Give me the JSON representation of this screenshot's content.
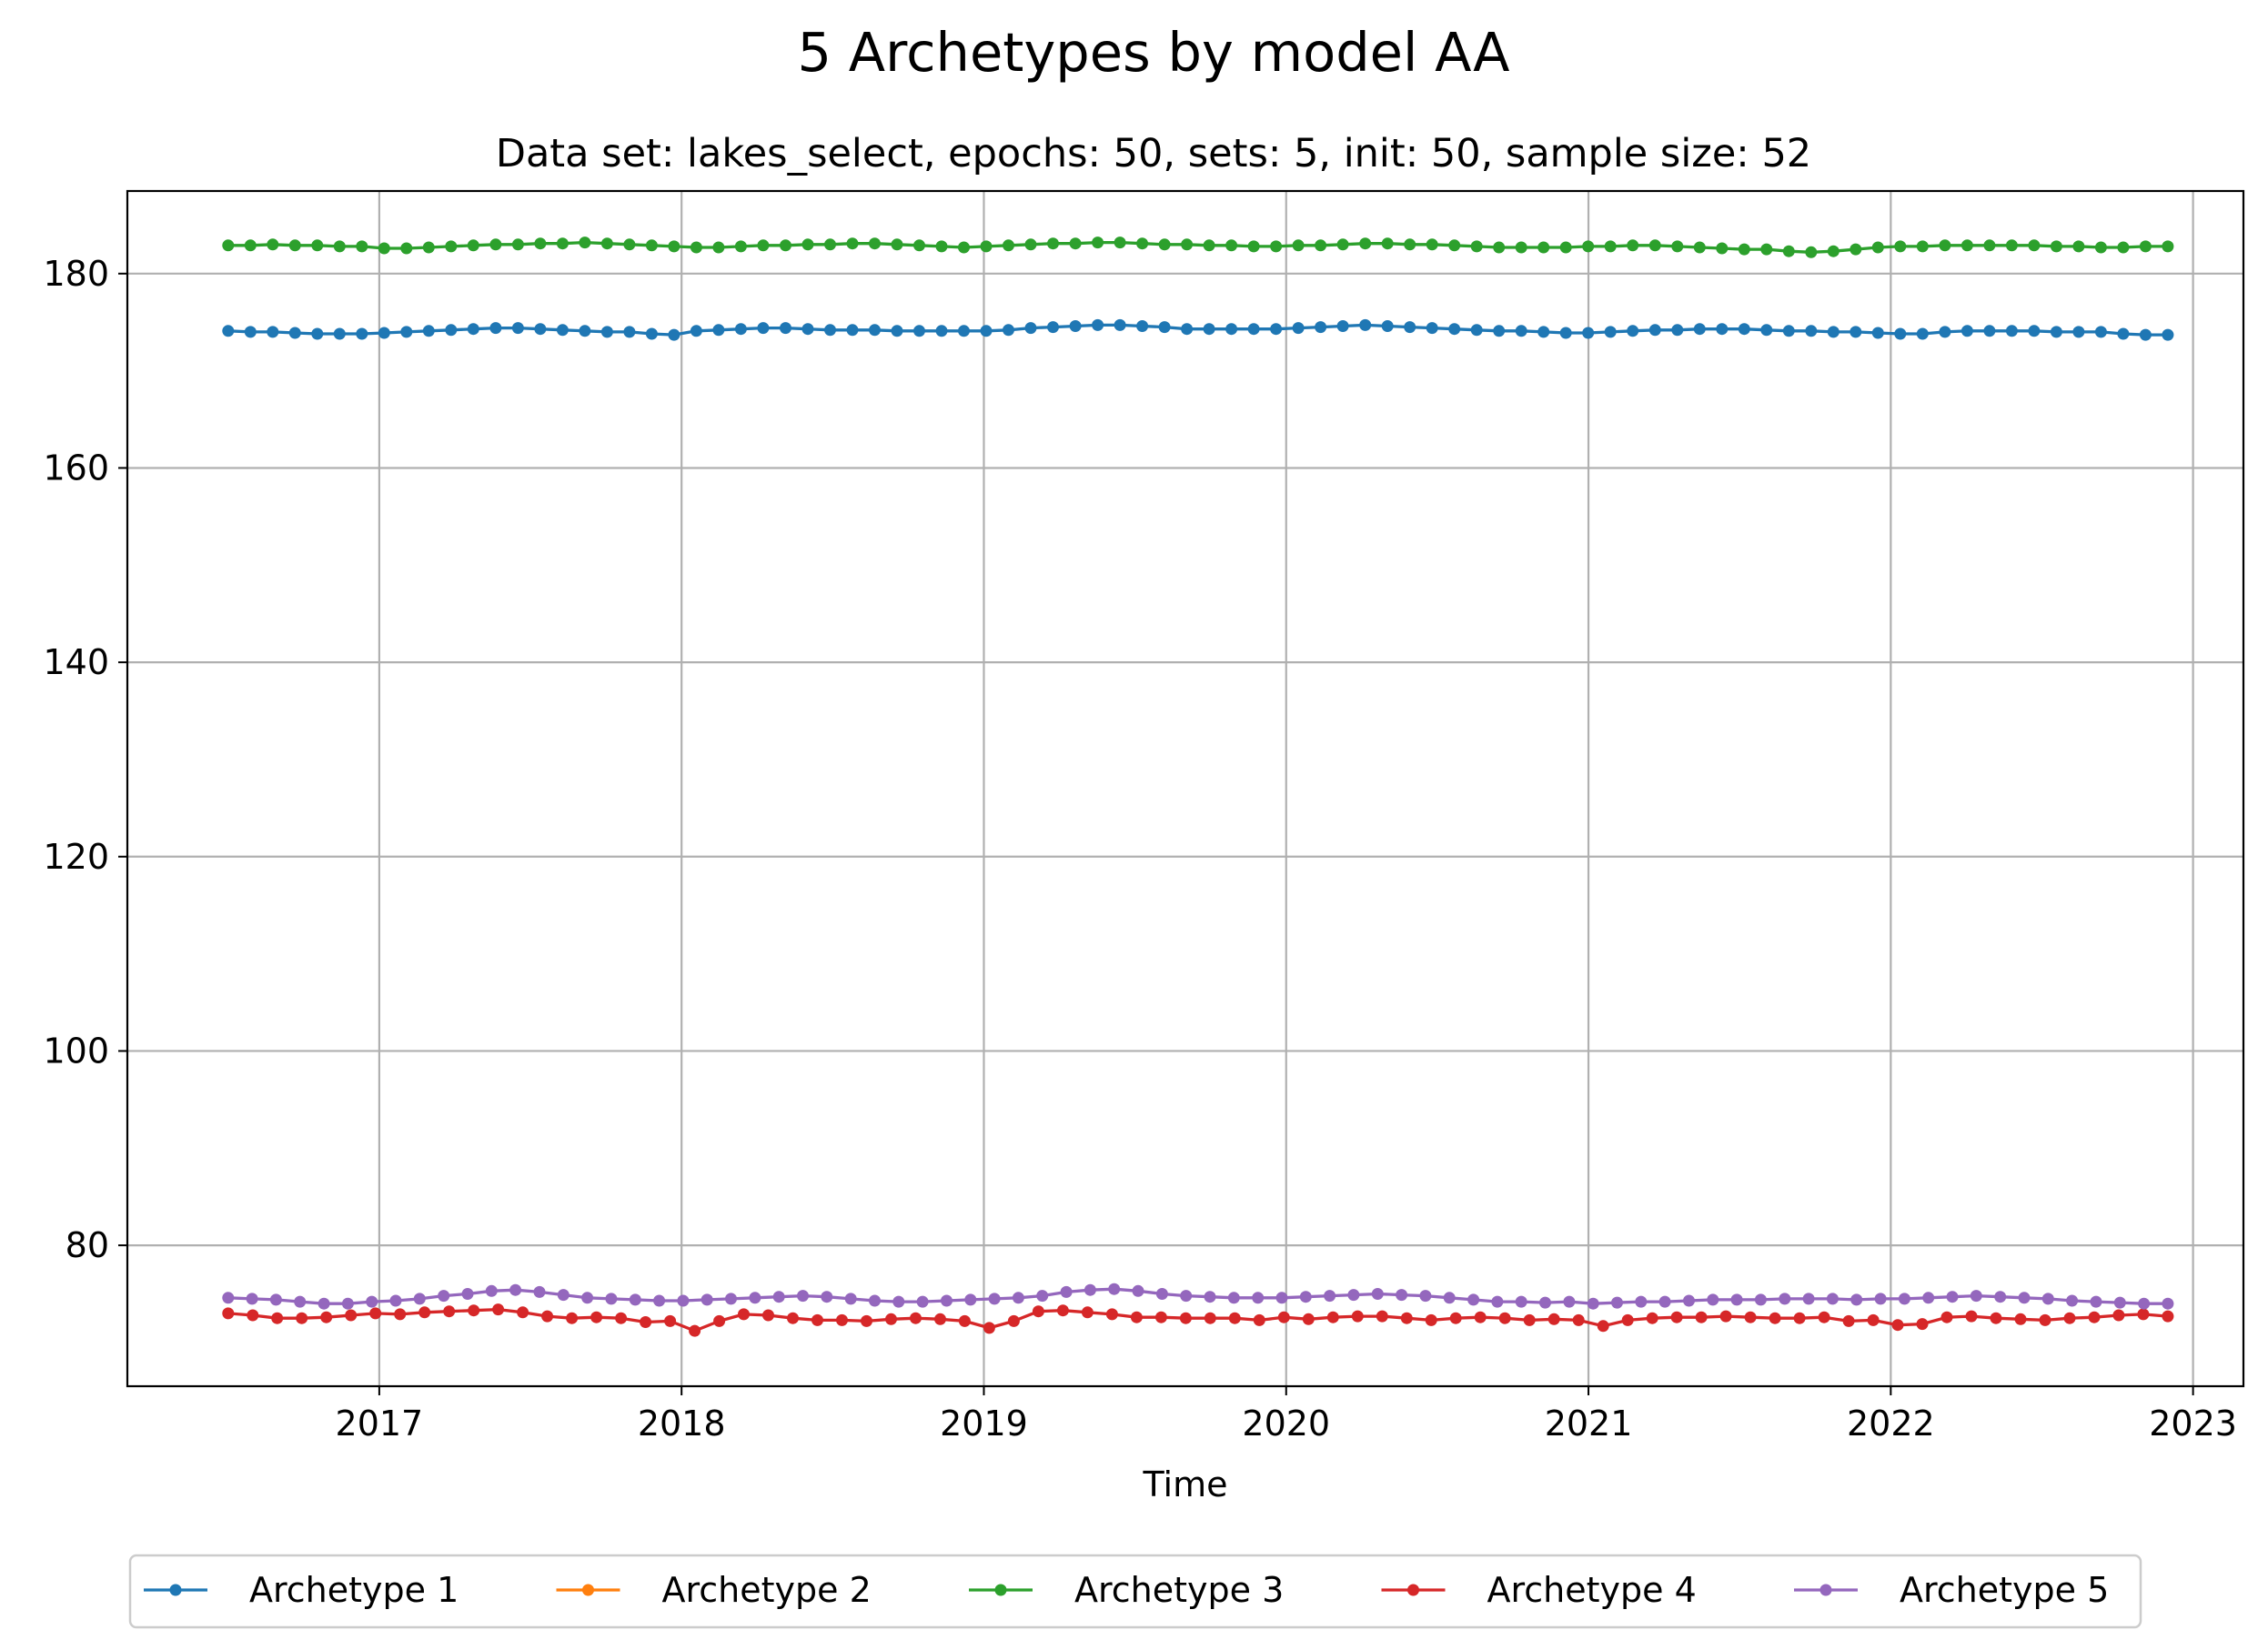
{
  "chart_data": {
    "type": "line",
    "title": "5 Archetypes by model AA",
    "subtitle": "Data set: lakes_select, epochs: 50, sets: 5, init: 50, sample size: 52",
    "xlabel": "Time",
    "ylabel": "",
    "x_start": "2016-07",
    "x_end": "2022-12",
    "x_frequency": "monthly",
    "xlim": [
      "2016-03",
      "2023-03"
    ],
    "ylim": [
      65.5,
      188.5
    ],
    "x_ticks": [
      "2017",
      "2018",
      "2019",
      "2020",
      "2021",
      "2022",
      "2023"
    ],
    "y_ticks": [
      80,
      100,
      120,
      140,
      160,
      180
    ],
    "grid": true,
    "legend_position": "bottom-center",
    "series": [
      {
        "name": "Archetype 1",
        "color": "#1f77b4",
        "values": [
          174.1,
          174.0,
          174.0,
          173.9,
          173.8,
          173.8,
          173.8,
          173.9,
          174.0,
          174.1,
          174.2,
          174.3,
          174.4,
          174.4,
          174.3,
          174.2,
          174.1,
          174.0,
          174.0,
          173.8,
          173.7,
          174.1,
          174.2,
          174.3,
          174.4,
          174.4,
          174.3,
          174.2,
          174.2,
          174.2,
          174.1,
          174.1,
          174.1,
          174.1,
          174.1,
          174.2,
          174.4,
          174.5,
          174.6,
          174.7,
          174.7,
          174.6,
          174.5,
          174.3,
          174.3,
          174.3,
          174.3,
          174.3,
          174.4,
          174.5,
          174.6,
          174.7,
          174.6,
          174.5,
          174.4,
          174.3,
          174.2,
          174.1,
          174.1,
          174.0,
          173.9,
          173.9,
          174.0,
          174.1,
          174.2,
          174.2,
          174.3,
          174.3,
          174.3,
          174.2,
          174.1,
          174.1,
          174.0,
          174.0,
          173.9,
          173.8,
          173.8,
          174.0,
          174.1,
          174.1,
          174.1,
          174.1,
          174.0,
          174.0,
          174.0,
          173.8,
          173.7,
          173.7
        ]
      },
      {
        "name": "Archetype 2",
        "color": "#ff7f0e",
        "values": []
      },
      {
        "name": "Archetype 3",
        "color": "#2ca02c",
        "values": [
          182.9,
          182.9,
          183.0,
          182.9,
          182.9,
          182.8,
          182.8,
          182.6,
          182.6,
          182.7,
          182.8,
          182.9,
          183.0,
          183.0,
          183.1,
          183.1,
          183.2,
          183.1,
          183.0,
          182.9,
          182.8,
          182.7,
          182.7,
          182.8,
          182.9,
          182.9,
          183.0,
          183.0,
          183.1,
          183.1,
          183.0,
          182.9,
          182.8,
          182.7,
          182.8,
          182.9,
          183.0,
          183.1,
          183.1,
          183.2,
          183.2,
          183.1,
          183.0,
          183.0,
          182.9,
          182.9,
          182.8,
          182.8,
          182.9,
          182.9,
          183.0,
          183.1,
          183.1,
          183.0,
          183.0,
          182.9,
          182.8,
          182.7,
          182.7,
          182.7,
          182.7,
          182.8,
          182.8,
          182.9,
          182.9,
          182.8,
          182.7,
          182.6,
          182.5,
          182.5,
          182.3,
          182.2,
          182.3,
          182.5,
          182.7,
          182.8,
          182.8,
          182.9,
          182.9,
          182.9,
          182.9,
          182.9,
          182.8,
          182.8,
          182.7,
          182.7,
          182.8,
          182.8
        ]
      },
      {
        "name": "Archetype 4",
        "color": "#d62728",
        "values": [
          73.0,
          72.8,
          72.5,
          72.5,
          72.6,
          72.8,
          73.0,
          72.9,
          73.1,
          73.2,
          73.3,
          73.4,
          73.1,
          72.7,
          72.5,
          72.6,
          72.5,
          72.1,
          72.2,
          71.2,
          72.2,
          72.9,
          72.8,
          72.5,
          72.3,
          72.3,
          72.2,
          72.4,
          72.5,
          72.4,
          72.2,
          71.5,
          72.2,
          73.2,
          73.3,
          73.1,
          72.9,
          72.6,
          72.6,
          72.5,
          72.5,
          72.5,
          72.3,
          72.6,
          72.4,
          72.6,
          72.7,
          72.7,
          72.5,
          72.3,
          72.5,
          72.6,
          72.5,
          72.3,
          72.4,
          72.3,
          71.7,
          72.3,
          72.5,
          72.6,
          72.6,
          72.7,
          72.6,
          72.5,
          72.5,
          72.6,
          72.2,
          72.3,
          71.8,
          71.9,
          72.6,
          72.7,
          72.5,
          72.4,
          72.3,
          72.5,
          72.6,
          72.8,
          72.9,
          72.7
        ]
      },
      {
        "name": "Archetype 5",
        "color": "#9467bd",
        "values": [
          74.6,
          74.5,
          74.4,
          74.2,
          74.0,
          74.0,
          74.2,
          74.3,
          74.5,
          74.8,
          75.0,
          75.3,
          75.4,
          75.2,
          74.9,
          74.6,
          74.5,
          74.4,
          74.3,
          74.3,
          74.4,
          74.5,
          74.6,
          74.7,
          74.8,
          74.7,
          74.5,
          74.3,
          74.2,
          74.2,
          74.3,
          74.4,
          74.5,
          74.6,
          74.8,
          75.2,
          75.4,
          75.5,
          75.3,
          75.0,
          74.8,
          74.7,
          74.6,
          74.6,
          74.6,
          74.7,
          74.8,
          74.9,
          75.0,
          74.9,
          74.8,
          74.6,
          74.4,
          74.2,
          74.2,
          74.1,
          74.2,
          74.0,
          74.1,
          74.2,
          74.2,
          74.3,
          74.4,
          74.4,
          74.4,
          74.5,
          74.5,
          74.5,
          74.4,
          74.5,
          74.5,
          74.6,
          74.7,
          74.8,
          74.7,
          74.6,
          74.5,
          74.3,
          74.2,
          74.1,
          74.0,
          74.0
        ]
      }
    ]
  }
}
